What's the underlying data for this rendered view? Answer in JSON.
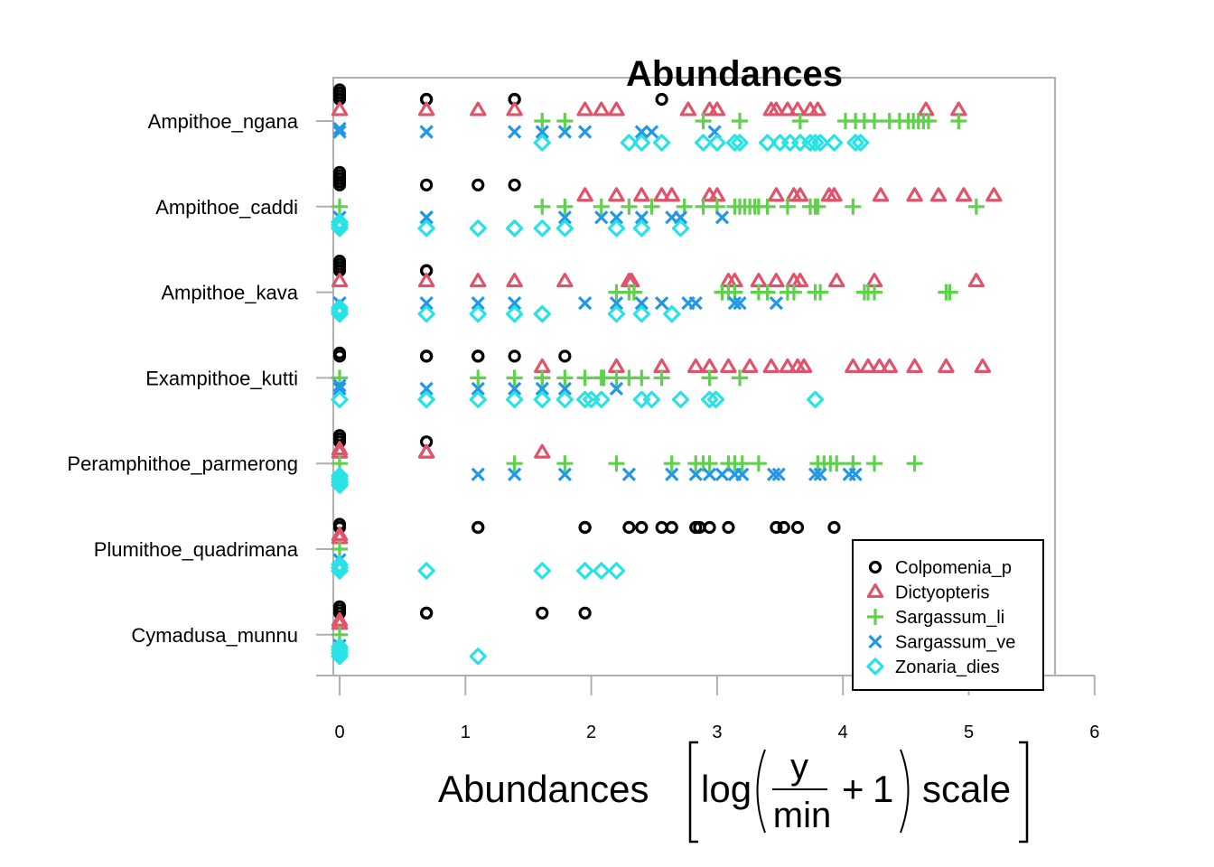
{
  "chart_data": {
    "type": "scatter",
    "title": "Abundances",
    "xlabel": {
      "prefix": "Abundances",
      "func": "log",
      "numerator": "y",
      "denominator": "min",
      "plus": "+",
      "one": "1",
      "suffix": "scale"
    },
    "ylabel": "",
    "xlim": [
      0,
      6
    ],
    "xticks": [
      0,
      1,
      2,
      3,
      4,
      5,
      6
    ],
    "xtick_labels": [
      "0",
      "1",
      "2",
      "3",
      "4",
      "5",
      "6"
    ],
    "grid": false,
    "legend_position": "bottom-right",
    "categories": [
      "Ampithoe_ngana",
      "Ampithoe_caddi",
      "Ampithoe_kava",
      "Exampithoe_kutti",
      "Peramphithoe_parmerong",
      "Plumithoe_quadrimana",
      "Cymadusa_munnu"
    ],
    "series": [
      {
        "name": "Colpomenia_p",
        "marker": "circle",
        "color": "#000000",
        "points": {
          "Ampithoe_ngana": [
            0,
            0,
            0,
            0,
            0.69,
            0.69,
            1.39,
            1.39,
            2.56
          ],
          "Ampithoe_caddi": [
            0,
            0,
            0,
            0,
            0,
            0.69,
            1.1,
            1.39
          ],
          "Ampithoe_kava": [
            0,
            0,
            0,
            0,
            0.69,
            0.69
          ],
          "Exampithoe_kutti": [
            0,
            0,
            0.69,
            0.69,
            0.69,
            1.1,
            1.1,
            1.1,
            1.39,
            1.79
          ],
          "Peramphithoe_parmerong": [
            0,
            0,
            0,
            0.69
          ],
          "Plumithoe_quadrimana": [
            0,
            0,
            1.1,
            1.1,
            1.95,
            1.95,
            2.3,
            2.4,
            2.56,
            2.64,
            2.83,
            2.86,
            2.94,
            3.09,
            3.47,
            3.53,
            3.64,
            3.93
          ],
          "Cymadusa_munnu": [
            0,
            0,
            0,
            0.69,
            0.69,
            1.61,
            1.95
          ]
        }
      },
      {
        "name": "Dictyopteris",
        "marker": "triangle",
        "color": "#DF536B",
        "points": {
          "Ampithoe_ngana": [
            0,
            0.69,
            1.1,
            1.39,
            1.95,
            2.08,
            2.2,
            2.77,
            2.94,
            3.0,
            3.43,
            3.47,
            3.56,
            3.64,
            3.74,
            3.8,
            4.66,
            4.92
          ],
          "Ampithoe_caddi": [
            1.95,
            2.2,
            2.4,
            2.56,
            2.64,
            2.94,
            3.0,
            3.47,
            3.61,
            3.66,
            3.89,
            3.93,
            4.3,
            4.57,
            4.76,
            4.96,
            5.2
          ],
          "Ampithoe_kava": [
            0,
            0.69,
            1.1,
            1.39,
            1.79,
            2.3,
            2.32,
            3.09,
            3.14,
            3.33,
            3.47,
            3.61,
            3.66,
            3.95,
            4.25,
            5.06
          ],
          "Exampithoe_kutti": [
            1.61,
            2.2,
            2.56,
            2.83,
            2.94,
            3.09,
            3.26,
            3.43,
            3.56,
            3.64,
            3.69,
            4.08,
            4.2,
            4.29,
            4.37,
            4.57,
            4.82,
            5.11
          ],
          "Peramphithoe_parmerong": [
            0,
            0,
            0.69,
            0.69,
            1.61
          ],
          "Plumithoe_quadrimana": [
            0,
            0
          ],
          "Cymadusa_munnu": [
            0,
            0
          ]
        }
      },
      {
        "name": "Sargassum_li",
        "marker": "plus",
        "color": "#61D04F",
        "points": {
          "Ampithoe_ngana": [
            1.61,
            1.79,
            2.89,
            3.18,
            3.66,
            4.02,
            4.1,
            4.17,
            4.25,
            4.37,
            4.45,
            4.52,
            4.56,
            4.6,
            4.64,
            4.68,
            4.92
          ],
          "Ampithoe_caddi": [
            0,
            1.61,
            1.79,
            2.08,
            2.3,
            2.48,
            2.74,
            2.89,
            3.0,
            3.14,
            3.18,
            3.22,
            3.26,
            3.3,
            3.33,
            3.4,
            3.56,
            3.74,
            3.78,
            3.8,
            4.08,
            5.06
          ],
          "Ampithoe_kava": [
            2.2,
            2.3,
            2.34,
            3.04,
            3.09,
            3.14,
            3.33,
            3.4,
            3.56,
            3.61,
            3.78,
            3.82,
            4.17,
            4.2,
            4.25,
            4.82,
            4.85
          ],
          "Exampithoe_kutti": [
            0,
            1.1,
            1.39,
            1.61,
            1.61,
            1.79,
            1.95,
            2.08,
            2.1,
            2.2,
            2.3,
            2.4,
            2.56,
            2.94,
            3.18
          ],
          "Peramphithoe_parmerong": [
            0,
            1.39,
            1.79,
            2.2,
            2.64,
            2.83,
            2.89,
            2.94,
            3.09,
            3.14,
            3.2,
            3.33,
            3.8,
            3.85,
            3.9,
            3.95,
            4.08,
            4.25,
            4.57
          ],
          "Plumithoe_quadrimana": [
            0
          ],
          "Cymadusa_munnu": [
            0
          ]
        }
      },
      {
        "name": "Sargassum_ve",
        "marker": "x",
        "color": "#2297E6",
        "points": {
          "Ampithoe_ngana": [
            0,
            0,
            0.69,
            0.69,
            1.39,
            1.61,
            1.79,
            1.95,
            2.4,
            2.48,
            2.98
          ],
          "Ampithoe_caddi": [
            0,
            0.69,
            0.69,
            1.79,
            2.08,
            2.2,
            2.4,
            2.64,
            2.71,
            3.04
          ],
          "Ampithoe_kava": [
            0,
            0.69,
            1.1,
            1.39,
            1.95,
            2.2,
            2.4,
            2.56,
            2.77,
            2.83,
            3.14,
            3.18,
            3.47
          ],
          "Exampithoe_kutti": [
            0,
            0,
            0.69,
            1.1,
            1.39,
            1.61,
            1.79,
            2.2
          ],
          "Peramphithoe_parmerong": [
            1.1,
            1.39,
            1.79,
            2.3,
            2.64,
            2.83,
            2.94,
            3.04,
            3.14,
            3.2,
            3.45,
            3.49,
            3.78,
            3.82,
            4.05,
            4.1
          ],
          "Plumithoe_quadrimana": [
            0
          ],
          "Cymadusa_munnu": [
            0
          ]
        }
      },
      {
        "name": "Zonaria_dies",
        "marker": "diamond",
        "color": "#28E2E5",
        "points": {
          "Ampithoe_ngana": [
            1.61,
            2.3,
            2.4,
            2.56,
            2.89,
            3.0,
            3.14,
            3.18,
            3.4,
            3.5,
            3.58,
            3.66,
            3.74,
            3.78,
            3.82,
            3.93,
            4.1,
            4.14
          ],
          "Ampithoe_caddi": [
            0,
            0,
            0,
            0.69,
            1.1,
            1.39,
            1.39,
            1.61,
            1.79,
            2.2,
            2.4,
            2.71
          ],
          "Ampithoe_kava": [
            0,
            0,
            0,
            0.69,
            1.1,
            1.39,
            1.61,
            1.61,
            2.2,
            2.4,
            2.64
          ],
          "Exampithoe_kutti": [
            0,
            0.69,
            0.69,
            1.1,
            1.39,
            1.61,
            1.79,
            1.95,
            2.0,
            2.08,
            2.4,
            2.48,
            2.71,
            2.94,
            2.99,
            3.78
          ],
          "Peramphithoe_parmerong": [
            0,
            0,
            0,
            0
          ],
          "Plumithoe_quadrimana": [
            0,
            0,
            0,
            0.69,
            1.61,
            1.95,
            2.08,
            2.2
          ],
          "Cymadusa_munnu": [
            0,
            0,
            0,
            0,
            1.1
          ]
        }
      }
    ]
  }
}
